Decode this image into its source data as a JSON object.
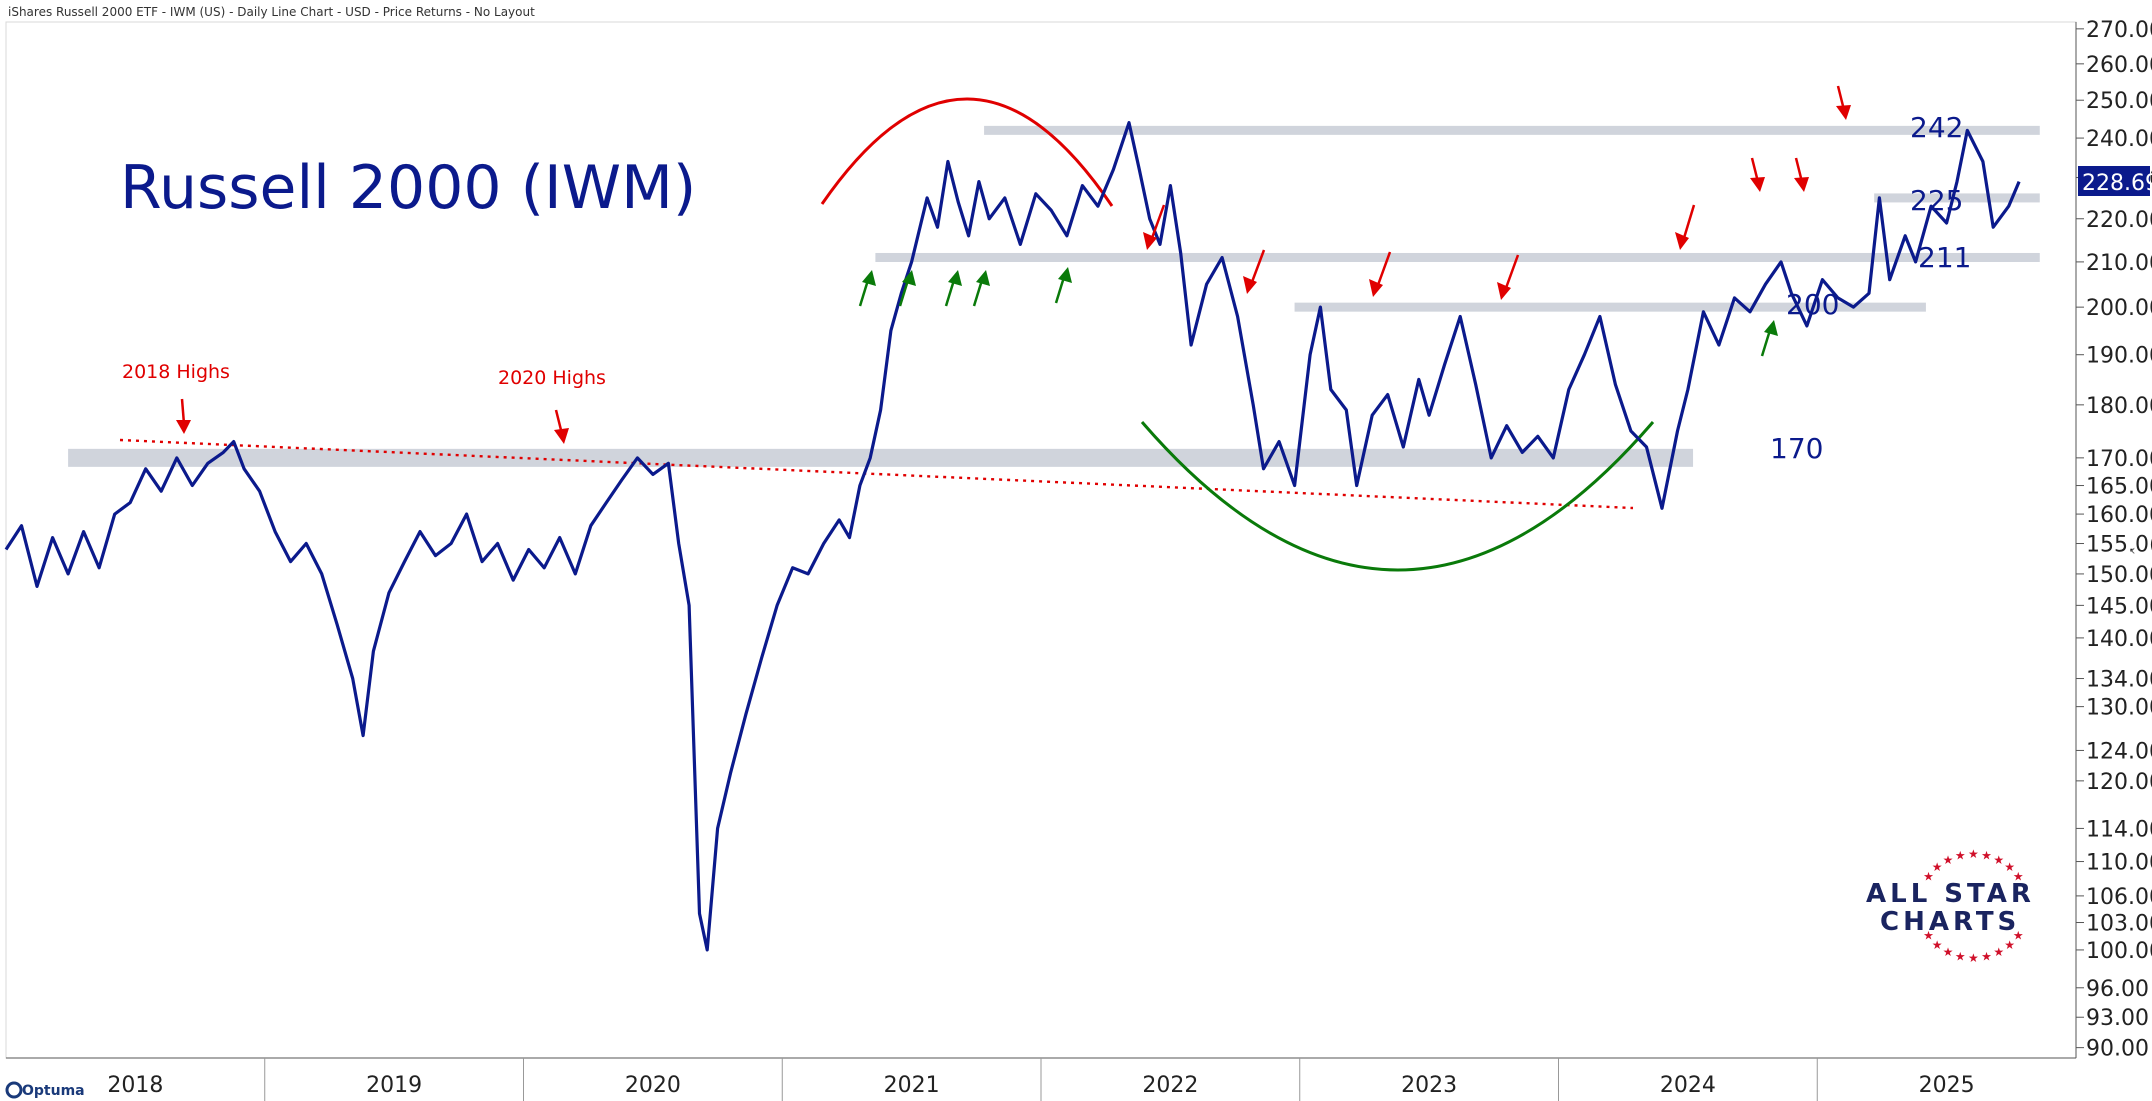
{
  "header": {
    "text": "iShares Russell 2000 ETF - IWM (US) - Daily Line Chart - USD - Price Returns - No Layout"
  },
  "title": "Russell 2000 (IWM)",
  "last_price_badge": "228.69",
  "annotations": {
    "high_2018": "2018 Highs",
    "high_2020": "2020 Highs"
  },
  "logo": {
    "line1": "ALL STAR",
    "line2": "CHARTS"
  },
  "footer_brand": "Optuma",
  "colors": {
    "price": "#0b1a8c",
    "resistance": "#e00000",
    "support": "#0a7a0a",
    "band": "#c8cdd6",
    "badge": "#0b1a8c"
  },
  "chart_data": {
    "type": "line",
    "yscale": "log",
    "ylim": [
      89,
      272
    ],
    "xlim": [
      2017.5,
      2025.5
    ],
    "y_ticks": [
      "270.00",
      "260.00",
      "250.00",
      "240.00",
      "230.00",
      "220.00",
      "210.00",
      "200.00",
      "190.00",
      "180.00",
      "170.00",
      "165.00",
      "160.00",
      "155.0(",
      "150.00",
      "145.00",
      "140.00",
      "134.00",
      "130.00",
      "124.00",
      "120.00",
      "114.00",
      "110.00",
      "106.00",
      "103.00",
      "100.00",
      "96.00",
      "93.00",
      "90.00"
    ],
    "x_labels": [
      {
        "label": "2018",
        "x": 2018.0
      },
      {
        "label": "2019",
        "x": 2019.0
      },
      {
        "label": "2020",
        "x": 2020.0
      },
      {
        "label": "2021",
        "x": 2021.0
      },
      {
        "label": "2022",
        "x": 2022.0
      },
      {
        "label": "2023",
        "x": 2023.0
      },
      {
        "label": "2024",
        "x": 2024.0
      },
      {
        "label": "2025",
        "x": 2025.0
      }
    ],
    "series": [
      {
        "points": [
          [
            2017.5,
            154
          ],
          [
            2017.56,
            158
          ],
          [
            2017.62,
            148
          ],
          [
            2017.68,
            156
          ],
          [
            2017.74,
            150
          ],
          [
            2017.8,
            157
          ],
          [
            2017.86,
            151
          ],
          [
            2017.92,
            160
          ],
          [
            2017.98,
            162
          ],
          [
            2018.04,
            168
          ],
          [
            2018.1,
            164
          ],
          [
            2018.16,
            170
          ],
          [
            2018.22,
            165
          ],
          [
            2018.28,
            169
          ],
          [
            2018.34,
            171
          ],
          [
            2018.38,
            173
          ],
          [
            2018.42,
            168
          ],
          [
            2018.48,
            164
          ],
          [
            2018.54,
            157
          ],
          [
            2018.6,
            152
          ],
          [
            2018.66,
            155
          ],
          [
            2018.72,
            150
          ],
          [
            2018.78,
            142
          ],
          [
            2018.84,
            134
          ],
          [
            2018.88,
            126
          ],
          [
            2018.92,
            138
          ],
          [
            2018.98,
            147
          ],
          [
            2019.04,
            152
          ],
          [
            2019.1,
            157
          ],
          [
            2019.16,
            153
          ],
          [
            2019.22,
            155
          ],
          [
            2019.28,
            160
          ],
          [
            2019.34,
            152
          ],
          [
            2019.4,
            155
          ],
          [
            2019.46,
            149
          ],
          [
            2019.52,
            154
          ],
          [
            2019.58,
            151
          ],
          [
            2019.64,
            156
          ],
          [
            2019.7,
            150
          ],
          [
            2019.76,
            158
          ],
          [
            2019.82,
            162
          ],
          [
            2019.88,
            166
          ],
          [
            2019.94,
            170
          ],
          [
            2020.0,
            167
          ],
          [
            2020.06,
            169
          ],
          [
            2020.1,
            155
          ],
          [
            2020.14,
            145
          ],
          [
            2020.18,
            104
          ],
          [
            2020.21,
            100
          ],
          [
            2020.25,
            114
          ],
          [
            2020.3,
            121
          ],
          [
            2020.36,
            129
          ],
          [
            2020.42,
            137
          ],
          [
            2020.48,
            145
          ],
          [
            2020.54,
            151
          ],
          [
            2020.6,
            150
          ],
          [
            2020.66,
            155
          ],
          [
            2020.72,
            159
          ],
          [
            2020.76,
            156
          ],
          [
            2020.8,
            165
          ],
          [
            2020.84,
            170
          ],
          [
            2020.88,
            179
          ],
          [
            2020.92,
            195
          ],
          [
            2020.96,
            203
          ],
          [
            2021.0,
            210
          ],
          [
            2021.06,
            225
          ],
          [
            2021.1,
            218
          ],
          [
            2021.14,
            234
          ],
          [
            2021.18,
            224
          ],
          [
            2021.22,
            216
          ],
          [
            2021.26,
            229
          ],
          [
            2021.3,
            220
          ],
          [
            2021.36,
            225
          ],
          [
            2021.42,
            214
          ],
          [
            2021.48,
            226
          ],
          [
            2021.54,
            222
          ],
          [
            2021.6,
            216
          ],
          [
            2021.66,
            228
          ],
          [
            2021.72,
            223
          ],
          [
            2021.78,
            232
          ],
          [
            2021.84,
            244
          ],
          [
            2021.88,
            232
          ],
          [
            2021.92,
            220
          ],
          [
            2021.96,
            214
          ],
          [
            2022.0,
            228
          ],
          [
            2022.04,
            212
          ],
          [
            2022.08,
            192
          ],
          [
            2022.14,
            205
          ],
          [
            2022.2,
            211
          ],
          [
            2022.26,
            198
          ],
          [
            2022.32,
            180
          ],
          [
            2022.36,
            168
          ],
          [
            2022.42,
            173
          ],
          [
            2022.48,
            165
          ],
          [
            2022.54,
            190
          ],
          [
            2022.58,
            200
          ],
          [
            2022.62,
            183
          ],
          [
            2022.68,
            179
          ],
          [
            2022.72,
            165
          ],
          [
            2022.78,
            178
          ],
          [
            2022.84,
            182
          ],
          [
            2022.9,
            172
          ],
          [
            2022.96,
            185
          ],
          [
            2023.0,
            178
          ],
          [
            2023.06,
            188
          ],
          [
            2023.12,
            198
          ],
          [
            2023.18,
            184
          ],
          [
            2023.24,
            170
          ],
          [
            2023.3,
            176
          ],
          [
            2023.36,
            171
          ],
          [
            2023.42,
            174
          ],
          [
            2023.48,
            170
          ],
          [
            2023.54,
            183
          ],
          [
            2023.6,
            190
          ],
          [
            2023.66,
            198
          ],
          [
            2023.72,
            184
          ],
          [
            2023.78,
            175
          ],
          [
            2023.84,
            172
          ],
          [
            2023.9,
            161
          ],
          [
            2023.96,
            175
          ],
          [
            2024.0,
            183
          ],
          [
            2024.06,
            199
          ],
          [
            2024.12,
            192
          ],
          [
            2024.18,
            202
          ],
          [
            2024.24,
            199
          ],
          [
            2024.3,
            205
          ],
          [
            2024.36,
            210
          ],
          [
            2024.4,
            203
          ],
          [
            2024.46,
            196
          ],
          [
            2024.52,
            206
          ],
          [
            2024.58,
            202
          ],
          [
            2024.64,
            200
          ],
          [
            2024.7,
            203
          ],
          [
            2024.74,
            225
          ],
          [
            2024.78,
            206
          ],
          [
            2024.84,
            216
          ],
          [
            2024.88,
            210
          ],
          [
            2024.94,
            223
          ],
          [
            2025.0,
            219
          ],
          [
            2025.04,
            229
          ],
          [
            2025.08,
            242
          ],
          [
            2025.14,
            234
          ],
          [
            2025.18,
            218
          ],
          [
            2025.24,
            223
          ],
          [
            2025.28,
            229
          ]
        ]
      }
    ],
    "horizontal_levels": [
      {
        "value": 242,
        "label": "242",
        "x_from": 2021.28,
        "x_to": 2025.36
      },
      {
        "value": 225,
        "label": "225",
        "x_from": 2024.72,
        "x_to": 2025.36
      },
      {
        "value": 211,
        "label": "211",
        "x_from": 2020.86,
        "x_to": 2025.36
      },
      {
        "value": 200,
        "label": "200",
        "x_from": 2022.48,
        "x_to": 2024.92
      },
      {
        "value": 170,
        "label": "170",
        "x_from": 2017.74,
        "x_to": 2024.02
      }
    ]
  }
}
